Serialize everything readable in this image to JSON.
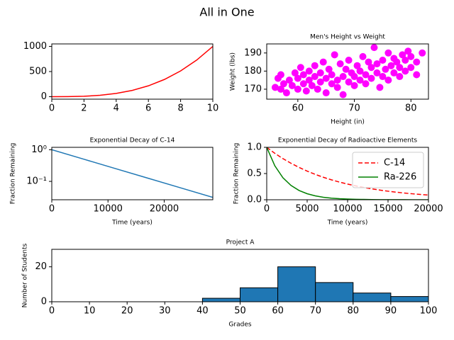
{
  "title": "All in One",
  "chart_data": [
    {
      "type": "line",
      "x": [
        0,
        1,
        2,
        3,
        4,
        5,
        6,
        7,
        8,
        9,
        10
      ],
      "values": [
        0,
        1,
        8,
        27,
        64,
        125,
        216,
        343,
        512,
        729,
        1000
      ],
      "color": "#ff0000",
      "xlim": [
        0,
        10
      ],
      "xticks": [
        0,
        2,
        4,
        6,
        8,
        10
      ],
      "ylim": [
        -50,
        1050
      ],
      "yticks": [
        0,
        500,
        1000
      ]
    },
    {
      "type": "scatter",
      "title": "Men's Height vs Weight",
      "xlabel": "Height (in)",
      "ylabel": "Weight (lbs)",
      "color": "#ff00ff",
      "x": [
        56,
        56.5,
        57,
        57,
        57.5,
        58,
        58.5,
        59,
        59.5,
        60,
        60,
        60.5,
        61,
        61,
        61.5,
        62,
        62,
        62.5,
        63,
        63,
        63.5,
        64,
        64,
        64.5,
        65,
        65,
        65.5,
        66,
        66,
        66.5,
        67,
        67,
        67.5,
        68,
        68,
        68.5,
        69,
        69,
        69.5,
        70,
        70,
        70.5,
        71,
        71,
        71.5,
        72,
        72,
        72.5,
        73,
        73,
        73.5,
        74,
        74,
        74.5,
        75,
        75,
        75.5,
        76,
        76,
        76.5,
        77,
        77,
        77.5,
        78,
        78,
        78.5,
        79,
        79,
        79.5,
        80,
        80,
        81,
        81,
        82
      ],
      "y": [
        171,
        176,
        170,
        178,
        173,
        168,
        175,
        172,
        179,
        170,
        176,
        182,
        173,
        178,
        169,
        175,
        180,
        172,
        177,
        183,
        170,
        174,
        179,
        185,
        168,
        176,
        181,
        173,
        178,
        189,
        171,
        175,
        184,
        167,
        177,
        181,
        174,
        186,
        179,
        172,
        177,
        183,
        175,
        180,
        188,
        173,
        178,
        185,
        176,
        182,
        193,
        179,
        184,
        171,
        177,
        186,
        181,
        175,
        190,
        183,
        179,
        187,
        185,
        177,
        182,
        189,
        180,
        186,
        191,
        182,
        188,
        178,
        185,
        190
      ],
      "xlim": [
        54.5,
        83.1
      ],
      "xticks": [
        60,
        70,
        80
      ],
      "ylim": [
        164.5,
        195
      ],
      "yticks": [
        170,
        180,
        190
      ]
    },
    {
      "type": "line",
      "title": "Exponential Decay of C-14",
      "xlabel": "Time (years)",
      "ylabel": "Fraction Remaining",
      "color": "#1f77b4",
      "x": [
        0,
        5730,
        11460,
        17190,
        22920,
        28650
      ],
      "values": [
        1,
        0.5,
        0.25,
        0.125,
        0.0625,
        0.03125
      ],
      "xlim": [
        0,
        28650
      ],
      "xticks": [
        0,
        10000,
        20000
      ],
      "yscale": "log",
      "ylim": [
        0.0263,
        1.19
      ],
      "yticks": [
        {
          "value": 1,
          "label": "10⁰"
        },
        {
          "value": 0.1,
          "label": "10⁻¹"
        }
      ]
    },
    {
      "type": "line",
      "title": "Exponential Decay of Radioactive Elements",
      "xlabel": "Time (years)",
      "ylabel": "Fraction Remaining",
      "x": [
        0,
        1000,
        2000,
        3000,
        4000,
        5000,
        6000,
        7000,
        8000,
        9000,
        10000,
        11000,
        12000,
        13000,
        14000,
        15000,
        16000,
        17000,
        18000,
        19000,
        20000
      ],
      "series": [
        {
          "name": "C-14",
          "color": "#ff0000",
          "linestyle": "--",
          "values": [
            1,
            0.886,
            0.785,
            0.696,
            0.617,
            0.547,
            0.484,
            0.429,
            0.38,
            0.337,
            0.299,
            0.265,
            0.235,
            0.208,
            0.184,
            0.163,
            0.145,
            0.128,
            0.114,
            0.101,
            0.089
          ]
        },
        {
          "name": "Ra-226",
          "color": "#008000",
          "linestyle": "-",
          "values": [
            1,
            0.648,
            0.42,
            0.273,
            0.177,
            0.115,
            0.074,
            0.048,
            0.031,
            0.02,
            0.013,
            0.009,
            0.006,
            0.004,
            0.002,
            0.002,
            0.001,
            0.001,
            0.0005,
            0.0003,
            0.0002
          ]
        }
      ],
      "legend": "upper right",
      "xlim": [
        0,
        20000
      ],
      "xticks": [
        0,
        5000,
        10000,
        15000,
        20000
      ],
      "ylim": [
        0,
        1
      ],
      "yticks": [
        {
          "value": 0,
          "label": "0.0"
        },
        {
          "value": 0.5,
          "label": "0.5"
        },
        {
          "value": 1,
          "label": "1.0"
        }
      ]
    },
    {
      "type": "histogram",
      "title": "Project A",
      "xlabel": "Grades",
      "ylabel": "Number of Students",
      "color": "#1f77b4",
      "edgecolor": "#000000",
      "bins": [
        0,
        10,
        20,
        30,
        40,
        50,
        60,
        70,
        80,
        90,
        100
      ],
      "values": [
        0,
        0,
        0,
        0,
        2,
        8,
        20,
        11,
        5,
        3
      ],
      "xlim": [
        0,
        100
      ],
      "xticks": [
        0,
        10,
        20,
        30,
        40,
        50,
        60,
        70,
        80,
        90,
        100
      ],
      "ylim": [
        0,
        30
      ],
      "yticks": [
        0,
        20
      ]
    }
  ]
}
